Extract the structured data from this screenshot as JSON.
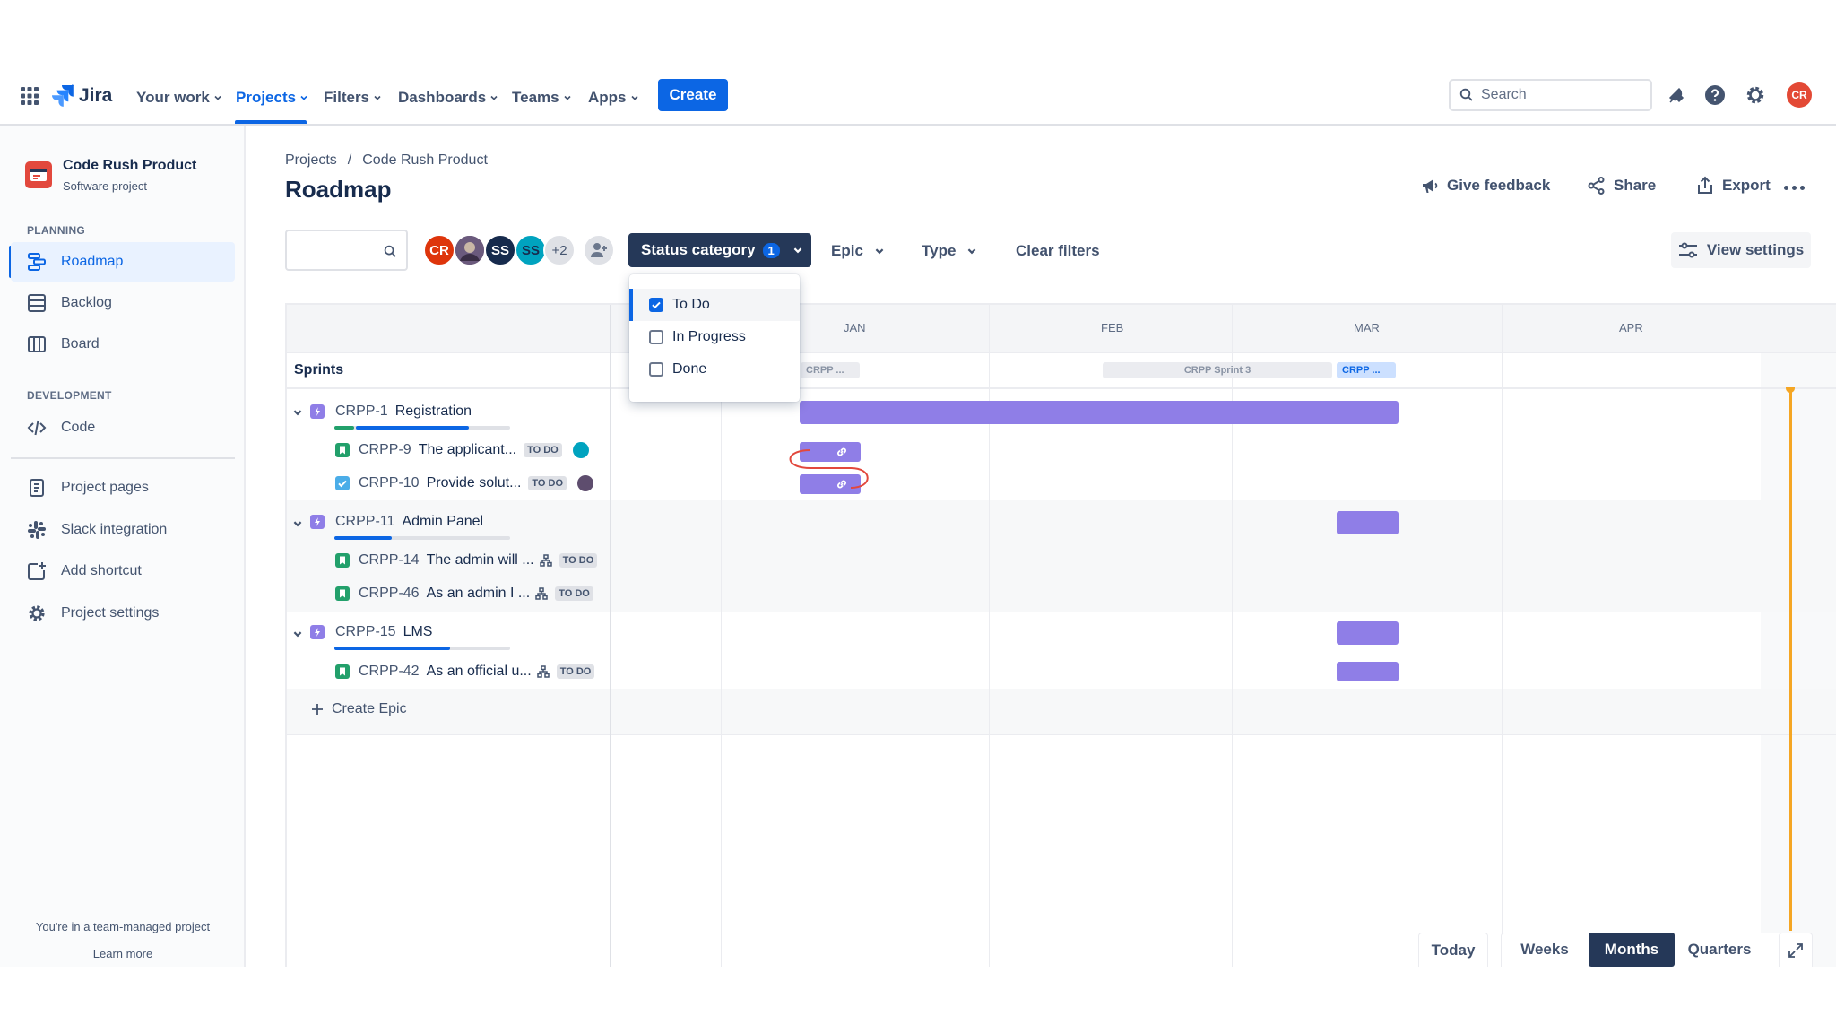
{
  "nav": {
    "logo": "Jira",
    "items": [
      {
        "label": "Your work",
        "active": false
      },
      {
        "label": "Projects",
        "active": true
      },
      {
        "label": "Filters",
        "active": false
      },
      {
        "label": "Dashboards",
        "active": false
      },
      {
        "label": "Teams",
        "active": false
      },
      {
        "label": "Apps",
        "active": false
      }
    ],
    "create_label": "Create",
    "search_placeholder": "Search",
    "user_initials": "CR"
  },
  "sidebar": {
    "project_name": "Code Rush Product",
    "project_type": "Software project",
    "planning_heading": "PLANNING",
    "planning_items": [
      "Roadmap",
      "Backlog",
      "Board"
    ],
    "development_heading": "DEVELOPMENT",
    "development_items": [
      "Code"
    ],
    "other_items": [
      "Project pages",
      "Slack integration",
      "Add shortcut",
      "Project settings"
    ],
    "footer_text": "You're in a team-managed project",
    "footer_link": "Learn more"
  },
  "breadcrumb": {
    "root": "Projects",
    "separator": "/",
    "project": "Code Rush Product"
  },
  "page_title": "Roadmap",
  "header_actions": {
    "feedback": "Give feedback",
    "share": "Share",
    "export": "Export"
  },
  "filters": {
    "avatars": [
      "CR",
      "",
      "SS",
      "SS"
    ],
    "more_count": "+2",
    "status_category_label": "Status category",
    "status_category_count": "1",
    "epic_label": "Epic",
    "type_label": "Type",
    "clear_label": "Clear filters",
    "view_settings_label": "View settings"
  },
  "status_dropdown": {
    "options": [
      {
        "label": "To Do",
        "checked": true
      },
      {
        "label": "In Progress",
        "checked": false
      },
      {
        "label": "Done",
        "checked": false
      }
    ]
  },
  "timeline": {
    "months": [
      "JAN",
      "FEB",
      "MAR",
      "APR"
    ],
    "sprints_label": "Sprints",
    "sprints": [
      "CRPP ...",
      "CRPP Sprint 3",
      "CRPP ..."
    ]
  },
  "epics": [
    {
      "key": "CRPP-1",
      "name": "Registration",
      "children": [
        {
          "key": "CRPP-9",
          "name": "The applicant...",
          "status": "TO DO",
          "type": "story"
        },
        {
          "key": "CRPP-10",
          "name": "Provide solut...",
          "status": "TO DO",
          "type": "task"
        }
      ]
    },
    {
      "key": "CRPP-11",
      "name": "Admin Panel",
      "children": [
        {
          "key": "CRPP-14",
          "name": "The admin will ...",
          "status": "TO DO",
          "type": "story"
        },
        {
          "key": "CRPP-46",
          "name": "As an admin I ...",
          "status": "TO DO",
          "type": "story"
        }
      ]
    },
    {
      "key": "CRPP-15",
      "name": "LMS",
      "children": [
        {
          "key": "CRPP-42",
          "name": "As an official u...",
          "status": "TO DO",
          "type": "story"
        }
      ]
    }
  ],
  "create_epic_label": "Create Epic",
  "view_modes": {
    "today": "Today",
    "weeks": "Weeks",
    "months": "Months",
    "quarters": "Quarters",
    "active": "Months"
  },
  "colors": {
    "accent": "#0c66e4",
    "bar": "#8f7ee7",
    "epic_icon": "#8f7ee7",
    "story_icon": "#22a06b",
    "task_icon": "#4bade8",
    "today_line": "#f5a623"
  }
}
